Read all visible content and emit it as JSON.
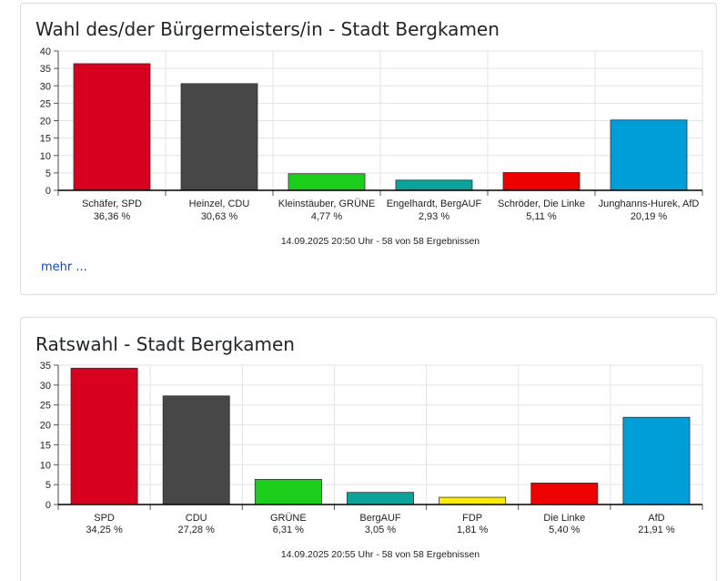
{
  "charts": [
    {
      "title": "Wahl des/der Bürgermeisters/in - Stadt Bergkamen",
      "footnote": "14.09.2025 20:50 Uhr - 58 von 58 Ergebnissen",
      "more_label": "mehr ..."
    },
    {
      "title": "Ratswahl - Stadt Bergkamen",
      "footnote": "14.09.2025 20:55 Uhr - 58 von 58 Ergebnissen"
    }
  ],
  "chart_data": [
    {
      "type": "bar",
      "title": "Wahl des/der Bürgermeisters/in - Stadt Bergkamen",
      "categories": [
        "Schäfer, SPD",
        "Heinzel, CDU",
        "Kleinstäuber, GRÜNE",
        "Engelhardt, BergAUF",
        "Schröder, Die Linke",
        "Junghanns-Hurek, AfD"
      ],
      "value_labels": [
        "36,36 %",
        "30,63 %",
        "4,77 %",
        "2,93 %",
        "5,11 %",
        "20,19 %"
      ],
      "values": [
        36.36,
        30.63,
        4.77,
        2.93,
        5.11,
        20.19
      ],
      "colors": [
        "#d7001f",
        "#474747",
        "#1ccd1c",
        "#0ba39c",
        "#ee0101",
        "#009ed8"
      ],
      "ylim": [
        0,
        40
      ],
      "yticks": [
        0,
        5,
        10,
        15,
        20,
        25,
        30,
        35,
        40
      ],
      "grid": true,
      "xlabel": "",
      "ylabel": ""
    },
    {
      "type": "bar",
      "title": "Ratswahl - Stadt Bergkamen",
      "categories": [
        "SPD",
        "CDU",
        "GRÜNE",
        "BergAUF",
        "FDP",
        "Die Linke",
        "AfD"
      ],
      "value_labels": [
        "34,25 %",
        "27,28 %",
        "6,31 %",
        "3,05 %",
        "1,81 %",
        "5,40 %",
        "21,91 %"
      ],
      "values": [
        34.25,
        27.28,
        6.31,
        3.05,
        1.81,
        5.4,
        21.91
      ],
      "colors": [
        "#d7001f",
        "#474747",
        "#1ccd1c",
        "#0ba39c",
        "#ffed00",
        "#ee0101",
        "#009ed8"
      ],
      "ylim": [
        0,
        35
      ],
      "yticks": [
        0,
        5,
        10,
        15,
        20,
        25,
        30,
        35
      ],
      "grid": true,
      "xlabel": "",
      "ylabel": ""
    }
  ]
}
